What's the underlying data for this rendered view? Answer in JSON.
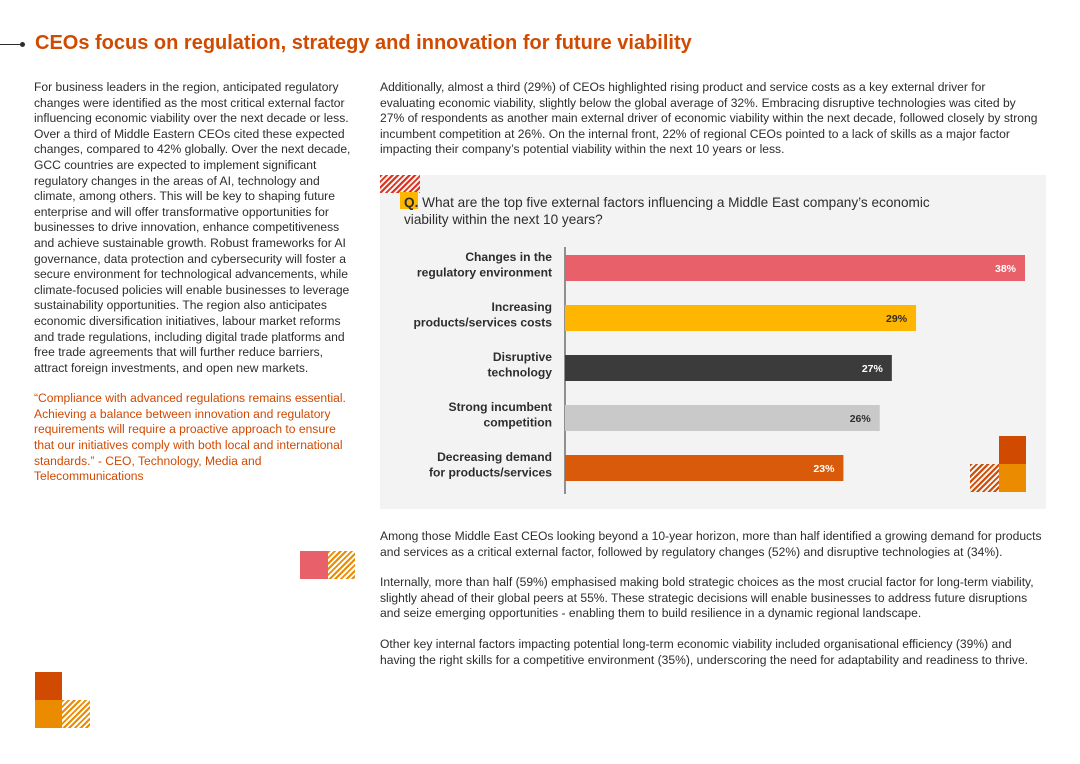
{
  "page": {
    "title": "CEOs focus on regulation, strategy and innovation for future viability"
  },
  "left_column": {
    "body": "For business leaders in the region, anticipated regulatory changes were identified as the most critical external factor influencing economic viability over the next decade or less. Over a third of Middle Eastern CEOs cited these expected changes, compared to 42% globally. Over the next decade, GCC countries are expected to implement significant regulatory changes in the areas of AI, technology and climate, among others. This will be key to shaping future enterprise and will offer transformative opportunities for businesses to drive innovation, enhance competitiveness and achieve sustainable growth. Robust frameworks for AI governance, data protection and cybersecurity will foster a secure environment for technological advancements, while climate-focused policies will enable businesses to leverage sustainability opportunities. The region also anticipates economic diversification initiatives, labour market reforms and trade regulations, including digital trade platforms and free trade agreements that will further reduce barriers, attract foreign investments, and open new markets.",
    "quote": "“Compliance with advanced regulations remains essential. Achieving a balance between innovation and regulatory requirements will require a proactive approach to ensure that our initiatives comply with both local and international standards.” - CEO, Technology, Media and Telecommunications"
  },
  "right_column": {
    "intro": "Additionally, almost a third (29%) of CEOs highlighted rising product and service costs as a key external driver for evaluating economic viability, slightly below the global average of 32%. Embracing disruptive technologies was cited by 27% of respondents as another main external driver of economic viability within the next decade, followed closely by strong incumbent competition at 26%. On the internal front, 22% of regional CEOs pointed to a lack of skills as a major factor impacting their company’s potential viability within the next 10 years or less.",
    "paragraphs": [
      "Among those Middle East CEOs looking beyond a 10-year horizon, more than half identified a growing demand for products and services as a critical external factor, followed by regulatory changes (52%) and disruptive technologies at (34%).",
      "Internally, more than half (59%) emphasised making bold strategic choices as the most crucial factor for long-term viability, slightly ahead of their global peers at 55%. These strategic decisions will enable businesses to address future disruptions and seize emerging opportunities - enabling them to build resilience in a dynamic regional landscape.",
      "Other key internal factors impacting potential long-term economic viability included organisational efficiency (39%) and having the right skills for a competitive environment (35%), underscoring the need for adaptability and readiness to thrive."
    ]
  },
  "chart": {
    "question_prefix": "Q.",
    "question_text": " What are the top five external factors influencing a Middle East company’s economic viability within the next 10 years?"
  },
  "chart_data": {
    "type": "bar",
    "orientation": "horizontal",
    "title": "Q. What are the top five external factors influencing a Middle East company’s economic viability within the next 10 years?",
    "categories": [
      [
        "Changes in the",
        "regulatory environment"
      ],
      [
        "Increasing",
        "products/services costs"
      ],
      [
        "Disruptive",
        "technology"
      ],
      [
        "Strong incumbent",
        "competition"
      ],
      [
        "Decreasing demand",
        "for products/services"
      ]
    ],
    "values": [
      38,
      29,
      27,
      26,
      23
    ],
    "value_labels": [
      "38%",
      "29%",
      "27%",
      "26%",
      "23%"
    ],
    "unit": "%",
    "xlim": [
      0,
      38
    ],
    "grid": false,
    "colors": [
      "#e8606a",
      "#ffb600",
      "#3b3b3b",
      "#c9c9c9",
      "#d95a0b"
    ],
    "label_colors": [
      "#ffffff",
      "#2d2d2d",
      "#ffffff",
      "#2d2d2d",
      "#ffffff"
    ]
  },
  "colors": {
    "accent": "#d04a02",
    "orange": "#eb8c00",
    "yellow": "#ffb600",
    "rose": "#e8606a"
  }
}
